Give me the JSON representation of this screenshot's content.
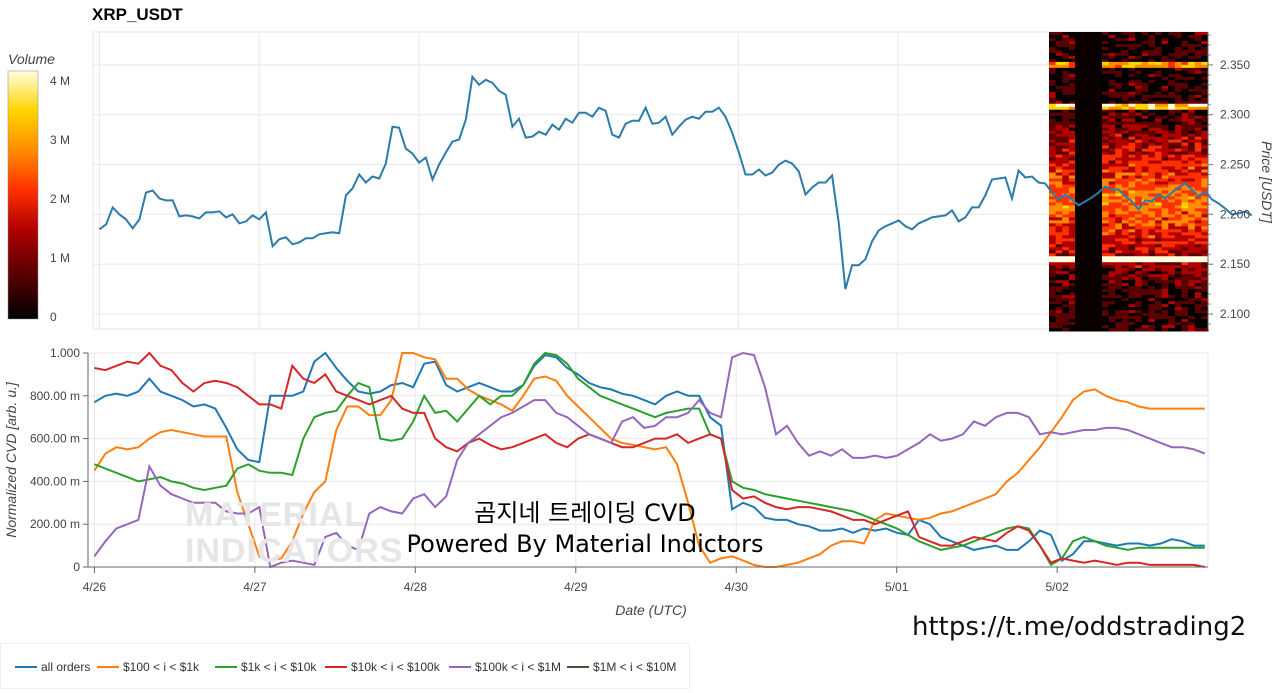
{
  "header": {
    "title": "XRP_USDT"
  },
  "colorbar": {
    "label": "Volume",
    "ticks": [
      "4 M",
      "3 M",
      "2 M",
      "1 M",
      "0"
    ]
  },
  "overlay": {
    "line1": "곰지네 트레이딩 CVD",
    "line2": "Powered By Material Indictors",
    "watermark_line1": "MATERIAL",
    "watermark_line2": "INDICATORS",
    "url": "https://t.me/oddstrading2"
  },
  "chart_data": [
    {
      "type": "line",
      "title": "XRP_USDT",
      "ylabel": "Price [USDT]",
      "xlabel": "",
      "x_ticks": [
        "4/26",
        "4/27",
        "4/28",
        "4/29",
        "4/30",
        "5/01",
        "5/02"
      ],
      "y_ticks": [
        "2.350",
        "2.300",
        "2.250",
        "2.200",
        "2.150",
        "2.100"
      ],
      "ylim": [
        2.085,
        2.383
      ],
      "xlim": [
        -0.04,
        6.94
      ],
      "grid": true,
      "series": [
        {
          "name": "XRP_USDT",
          "color": "#2b7bab",
          "x_step_days": 0.0417,
          "values": [
            2.185,
            2.19,
            2.207,
            2.2,
            2.195,
            2.186,
            2.195,
            2.222,
            2.224,
            2.216,
            2.214,
            2.214,
            2.198,
            2.199,
            2.198,
            2.196,
            2.202,
            2.202,
            2.203,
            2.197,
            2.2,
            2.191,
            2.193,
            2.199,
            2.195,
            2.202,
            2.168,
            2.175,
            2.177,
            2.17,
            2.172,
            2.176,
            2.176,
            2.18,
            2.181,
            2.182,
            2.181,
            2.219,
            2.226,
            2.24,
            2.232,
            2.238,
            2.236,
            2.251,
            2.288,
            2.287,
            2.266,
            2.261,
            2.252,
            2.257,
            2.235,
            2.25,
            2.262,
            2.273,
            2.275,
            2.295,
            2.338,
            2.33,
            2.335,
            2.332,
            2.324,
            2.32,
            2.288,
            2.296,
            2.277,
            2.278,
            2.283,
            2.28,
            2.29,
            2.285,
            2.296,
            2.292,
            2.302,
            2.302,
            2.298,
            2.307,
            2.304,
            2.28,
            2.277,
            2.291,
            2.294,
            2.294,
            2.307,
            2.291,
            2.292,
            2.298,
            2.28,
            2.288,
            2.295,
            2.298,
            2.296,
            2.303,
            2.303,
            2.307,
            2.298,
            2.282,
            2.262,
            2.24,
            2.24,
            2.245,
            2.239,
            2.242,
            2.25,
            2.254,
            2.251,
            2.243,
            2.22,
            2.227,
            2.232,
            2.232,
            2.239,
            2.191,
            2.125,
            2.149,
            2.149,
            2.155,
            2.173,
            2.184,
            2.188,
            2.191,
            2.194,
            2.188,
            2.185,
            2.191,
            2.194,
            2.197,
            2.198,
            2.199,
            2.204,
            2.193,
            2.197,
            2.207,
            2.207,
            2.219,
            2.235,
            2.236,
            2.237,
            2.216,
            2.244,
            2.237,
            2.238,
            2.232,
            2.231,
            2.222,
            2.215,
            2.22,
            2.215,
            2.209,
            2.213,
            2.217,
            2.222,
            2.228,
            2.225,
            2.225,
            2.218,
            2.213,
            2.205,
            2.214,
            2.213,
            2.22,
            2.216,
            2.222,
            2.227,
            2.231,
            2.225,
            2.218,
            2.223,
            2.215,
            2.211,
            2.206,
            2.2,
            2.201,
            2.203,
            2.199
          ]
        }
      ],
      "heatmap": {
        "type": "heatmap",
        "colorscale": [
          "#000000",
          "#5a0000",
          "#b00000",
          "#ff3000",
          "#ff8c00",
          "#ffd400",
          "#ffffe0"
        ],
        "zlim": [
          0,
          4200000
        ]
      }
    },
    {
      "type": "line",
      "xlabel": "Date (UTC)",
      "ylabel": "Normalized CVD [arb. u.]",
      "x_ticks": [
        "4/26",
        "4/27",
        "4/28",
        "4/29",
        "4/30",
        "5/01",
        "5/02"
      ],
      "y_ticks": [
        "1.000",
        "800.00 m",
        "600.00 m",
        "400.00 m",
        "200.00 m",
        "0"
      ],
      "ylim": [
        0,
        1
      ],
      "xlim": [
        -0.04,
        6.94
      ],
      "grid": true,
      "legend_position": "bottom",
      "series": [
        {
          "name": "all orders",
          "color": "#1f77b4",
          "values": [
            0.77,
            0.8,
            0.81,
            0.8,
            0.82,
            0.88,
            0.82,
            0.8,
            0.78,
            0.75,
            0.76,
            0.74,
            0.65,
            0.55,
            0.5,
            0.49,
            0.8,
            0.8,
            0.8,
            0.82,
            0.96,
            1.0,
            0.93,
            0.87,
            0.82,
            0.81,
            0.82,
            0.85,
            0.86,
            0.84,
            0.95,
            0.96,
            0.85,
            0.82,
            0.84,
            0.86,
            0.84,
            0.82,
            0.82,
            0.85,
            0.94,
            0.99,
            0.98,
            0.93,
            0.9,
            0.86,
            0.84,
            0.83,
            0.81,
            0.8,
            0.78,
            0.76,
            0.8,
            0.82,
            0.8,
            0.8,
            0.7,
            0.66,
            0.27,
            0.3,
            0.28,
            0.23,
            0.22,
            0.22,
            0.2,
            0.19,
            0.17,
            0.17,
            0.18,
            0.16,
            0.18,
            0.17,
            0.18,
            0.16,
            0.15,
            0.22,
            0.2,
            0.14,
            0.12,
            0.1,
            0.08,
            0.09,
            0.1,
            0.08,
            0.08,
            0.12,
            0.17,
            0.15,
            0.03,
            0.06,
            0.12,
            0.12,
            0.11,
            0.1,
            0.11,
            0.11,
            0.1,
            0.11,
            0.13,
            0.12,
            0.1,
            0.1
          ]
        },
        {
          "name": "$100 < i < $1k",
          "color": "#ff7f0e",
          "values": [
            0.45,
            0.53,
            0.56,
            0.55,
            0.56,
            0.6,
            0.63,
            0.64,
            0.63,
            0.62,
            0.61,
            0.61,
            0.61,
            0.35,
            0.2,
            0.05,
            0.03,
            0.04,
            0.12,
            0.25,
            0.35,
            0.4,
            0.64,
            0.75,
            0.75,
            0.71,
            0.71,
            0.78,
            1.0,
            1.0,
            0.98,
            0.97,
            0.88,
            0.88,
            0.83,
            0.8,
            0.78,
            0.76,
            0.73,
            0.8,
            0.88,
            0.89,
            0.87,
            0.8,
            0.75,
            0.7,
            0.65,
            0.6,
            0.58,
            0.57,
            0.56,
            0.55,
            0.56,
            0.48,
            0.3,
            0.1,
            0.02,
            0.04,
            0.05,
            0.03,
            0.01,
            0.0,
            0.0,
            0.01,
            0.02,
            0.04,
            0.06,
            0.1,
            0.12,
            0.12,
            0.11,
            0.22,
            0.25,
            0.24,
            0.23,
            0.22,
            0.23,
            0.25,
            0.26,
            0.28,
            0.3,
            0.32,
            0.34,
            0.4,
            0.44,
            0.5,
            0.56,
            0.63,
            0.7,
            0.78,
            0.82,
            0.83,
            0.8,
            0.78,
            0.77,
            0.75,
            0.74,
            0.74,
            0.74,
            0.74,
            0.74,
            0.74
          ]
        },
        {
          "name": "$1k < i < $10k",
          "color": "#2ca02c",
          "values": [
            0.48,
            0.46,
            0.44,
            0.42,
            0.4,
            0.41,
            0.42,
            0.4,
            0.39,
            0.37,
            0.36,
            0.37,
            0.38,
            0.46,
            0.48,
            0.45,
            0.44,
            0.44,
            0.43,
            0.6,
            0.7,
            0.72,
            0.73,
            0.8,
            0.86,
            0.84,
            0.6,
            0.59,
            0.6,
            0.68,
            0.8,
            0.72,
            0.73,
            0.68,
            0.74,
            0.8,
            0.76,
            0.8,
            0.8,
            0.85,
            0.95,
            1.0,
            0.99,
            0.95,
            0.88,
            0.84,
            0.8,
            0.78,
            0.76,
            0.74,
            0.72,
            0.7,
            0.72,
            0.73,
            0.74,
            0.74,
            0.62,
            0.6,
            0.4,
            0.37,
            0.36,
            0.34,
            0.33,
            0.32,
            0.31,
            0.3,
            0.29,
            0.28,
            0.27,
            0.26,
            0.24,
            0.22,
            0.2,
            0.18,
            0.15,
            0.12,
            0.1,
            0.08,
            0.09,
            0.1,
            0.12,
            0.14,
            0.16,
            0.18,
            0.19,
            0.18,
            0.1,
            0.01,
            0.04,
            0.12,
            0.14,
            0.12,
            0.1,
            0.09,
            0.08,
            0.09,
            0.09,
            0.09,
            0.09,
            0.09,
            0.09,
            0.09
          ]
        },
        {
          "name": "$10k < i < $100k",
          "color": "#d62728",
          "values": [
            0.93,
            0.92,
            0.94,
            0.96,
            0.95,
            1.0,
            0.94,
            0.92,
            0.86,
            0.82,
            0.86,
            0.87,
            0.86,
            0.84,
            0.8,
            0.76,
            0.76,
            0.74,
            0.94,
            0.88,
            0.86,
            0.9,
            0.82,
            0.8,
            0.78,
            0.76,
            0.78,
            0.8,
            0.74,
            0.72,
            0.72,
            0.6,
            0.56,
            0.54,
            0.58,
            0.6,
            0.57,
            0.55,
            0.56,
            0.58,
            0.6,
            0.62,
            0.58,
            0.56,
            0.6,
            0.62,
            0.6,
            0.58,
            0.56,
            0.56,
            0.58,
            0.6,
            0.6,
            0.62,
            0.58,
            0.6,
            0.62,
            0.6,
            0.36,
            0.32,
            0.33,
            0.3,
            0.28,
            0.27,
            0.28,
            0.28,
            0.27,
            0.26,
            0.24,
            0.22,
            0.22,
            0.2,
            0.22,
            0.24,
            0.26,
            0.14,
            0.12,
            0.1,
            0.1,
            0.12,
            0.14,
            0.13,
            0.12,
            0.16,
            0.19,
            0.17,
            0.1,
            0.02,
            0.04,
            0.03,
            0.02,
            0.03,
            0.02,
            0.01,
            0.02,
            0.02,
            0.01,
            0.01,
            0.01,
            0.01,
            0.01,
            0.0
          ]
        },
        {
          "name": "$100k < i < $1M",
          "color": "#9467bd",
          "values": [
            0.05,
            0.12,
            0.18,
            0.2,
            0.22,
            0.47,
            0.38,
            0.34,
            0.32,
            0.3,
            0.3,
            0.3,
            0.26,
            0.25,
            0.25,
            0.28,
            0.0,
            0.02,
            0.03,
            0.02,
            0.01,
            0.14,
            0.16,
            0.1,
            0.08,
            0.25,
            0.28,
            0.26,
            0.25,
            0.32,
            0.34,
            0.28,
            0.33,
            0.5,
            0.58,
            0.62,
            0.66,
            0.7,
            0.72,
            0.75,
            0.78,
            0.78,
            0.72,
            0.7,
            0.66,
            0.62,
            0.6,
            0.58,
            0.68,
            0.7,
            0.65,
            0.66,
            0.7,
            0.7,
            0.72,
            0.78,
            0.72,
            0.7,
            0.98,
            1.0,
            0.99,
            0.84,
            0.62,
            0.66,
            0.58,
            0.52,
            0.54,
            0.52,
            0.55,
            0.51,
            0.51,
            0.52,
            0.51,
            0.52,
            0.55,
            0.58,
            0.62,
            0.59,
            0.6,
            0.62,
            0.68,
            0.66,
            0.7,
            0.72,
            0.72,
            0.7,
            0.62,
            0.63,
            0.62,
            0.63,
            0.64,
            0.64,
            0.65,
            0.65,
            0.64,
            0.62,
            0.6,
            0.58,
            0.56,
            0.56,
            0.55,
            0.53
          ]
        },
        {
          "name": "$1M < i < $10M",
          "color": "#5b4a3a",
          "values": []
        }
      ]
    }
  ]
}
